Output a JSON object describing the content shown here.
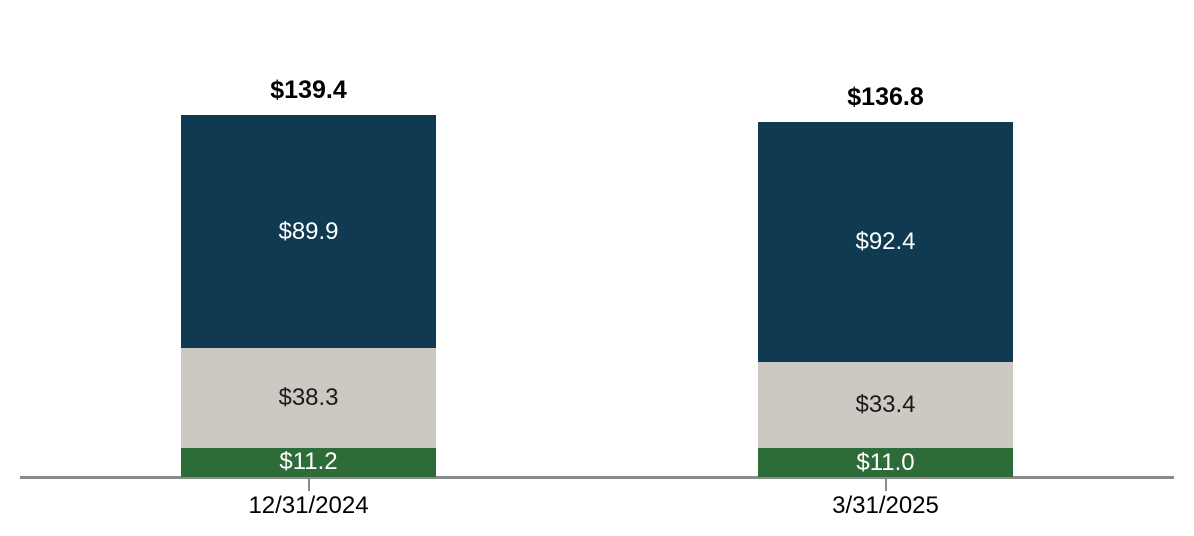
{
  "page": {
    "background": "#FFFFFF"
  },
  "chart_data": {
    "type": "bar",
    "stacked": true,
    "orientation": "vertical",
    "categories": [
      "12/31/2024",
      "3/31/2025"
    ],
    "series": [
      {
        "name": "bottom-segment",
        "color": "#2D6C38",
        "label_color": "#FFFFFF",
        "values": [
          11.2,
          11.0
        ],
        "labels": [
          "$11.2",
          "$11.0"
        ]
      },
      {
        "name": "middle-segment",
        "color": "#CCC9C2",
        "label_color": "#1A1A1A",
        "values": [
          38.3,
          33.4
        ],
        "labels": [
          "$38.3",
          "$33.4"
        ]
      },
      {
        "name": "top-segment",
        "color": "#0F3A52",
        "label_color": "#FFFFFF",
        "values": [
          89.9,
          92.4
        ],
        "labels": [
          "$89.9",
          "$92.4"
        ]
      }
    ],
    "totals": [
      139.4,
      136.8
    ],
    "total_labels": [
      "$139.4",
      "$136.8"
    ],
    "title": "",
    "xlabel": "",
    "ylabel": "",
    "ylim": [
      0,
      145
    ],
    "grid": false,
    "legend": "none",
    "axis_color": "#8A8A8A",
    "value_unit": "$ (dollars, in presumed millions/billions as shown)"
  }
}
